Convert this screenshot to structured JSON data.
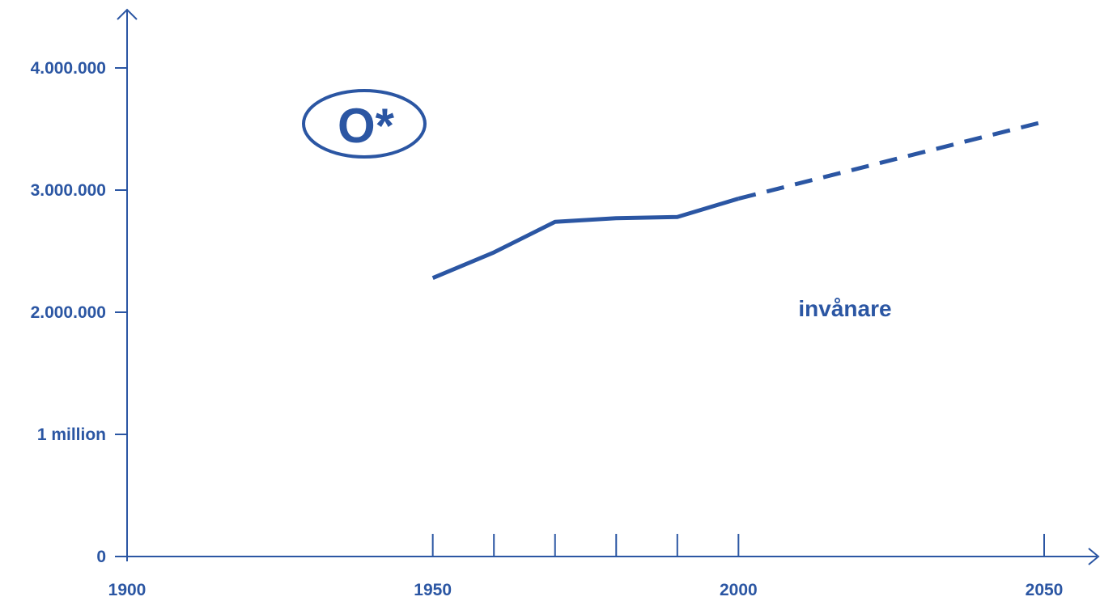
{
  "colors": {
    "accent": "#2b56a3",
    "background": "#ffffff"
  },
  "chart_data": {
    "type": "line",
    "xlim": [
      1900,
      2050
    ],
    "ylim": [
      0,
      4000000
    ],
    "x_ticks": [
      {
        "value": 1900,
        "label": "1900"
      },
      {
        "value": 1950,
        "label": "1950"
      },
      {
        "value": 1960,
        "label": ""
      },
      {
        "value": 1970,
        "label": ""
      },
      {
        "value": 1980,
        "label": ""
      },
      {
        "value": 1990,
        "label": ""
      },
      {
        "value": 2000,
        "label": "2000"
      },
      {
        "value": 2050,
        "label": "2050"
      }
    ],
    "y_ticks": [
      {
        "value": 0,
        "label": "0"
      },
      {
        "value": 1000000,
        "label": "1 million"
      },
      {
        "value": 2000000,
        "label": "2.000.000"
      },
      {
        "value": 3000000,
        "label": "3.000.000"
      },
      {
        "value": 4000000,
        "label": "4.000.000"
      }
    ],
    "series": [
      {
        "name": "invånare",
        "style": "solid",
        "points": [
          {
            "x": 1950,
            "y": 2280000
          },
          {
            "x": 1960,
            "y": 2490000
          },
          {
            "x": 1970,
            "y": 2740000
          },
          {
            "x": 1980,
            "y": 2770000
          },
          {
            "x": 1990,
            "y": 2780000
          },
          {
            "x": 2000,
            "y": 2930000
          }
        ]
      },
      {
        "style": "dashed",
        "points": [
          {
            "x": 2000,
            "y": 2930000
          },
          {
            "x": 2050,
            "y": 3560000
          }
        ]
      }
    ],
    "annotations": {
      "badge": "O*",
      "series_label": "invånare"
    },
    "grid": false,
    "legend": "none"
  }
}
